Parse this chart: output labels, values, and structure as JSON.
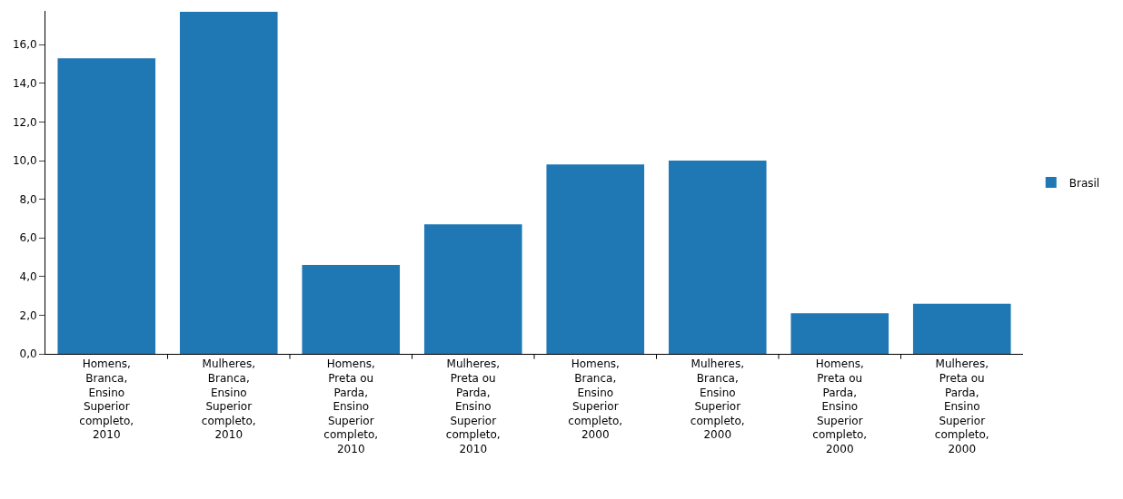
{
  "chart_data": {
    "type": "bar",
    "categories": [
      "Homens, Branca, Ensino Superior completo, 2010",
      "Mulheres, Branca, Ensino Superior completo, 2010",
      "Homens, Preta ou Parda, Ensino Superior completo, 2010",
      "Mulheres, Preta ou Parda, Ensino Superior completo, 2010",
      "Homens, Branca, Ensino Superior completo, 2000",
      "Mulheres, Branca, Ensino Superior completo, 2000",
      "Homens, Preta ou Parda, Ensino Superior completo, 2000",
      "Mulheres, Preta ou Parda, Ensino Superior completo, 2000"
    ],
    "series": [
      {
        "name": "Brasil",
        "color": "#1f77b4",
        "values": [
          15.3,
          17.7,
          4.6,
          6.7,
          9.8,
          10.0,
          2.1,
          2.6
        ]
      }
    ],
    "ylim": [
      0,
      17.75
    ],
    "yticks": [
      {
        "value": 0,
        "label": "0,0"
      },
      {
        "value": 2,
        "label": "2,0"
      },
      {
        "value": 4,
        "label": "4,0"
      },
      {
        "value": 6,
        "label": "6,0"
      },
      {
        "value": 8,
        "label": "8,0"
      },
      {
        "value": 10,
        "label": "10,0"
      },
      {
        "value": 12,
        "label": "12,0"
      },
      {
        "value": 14,
        "label": "14,0"
      },
      {
        "value": 16,
        "label": "16,0"
      }
    ],
    "grid": false,
    "legend": "right"
  }
}
